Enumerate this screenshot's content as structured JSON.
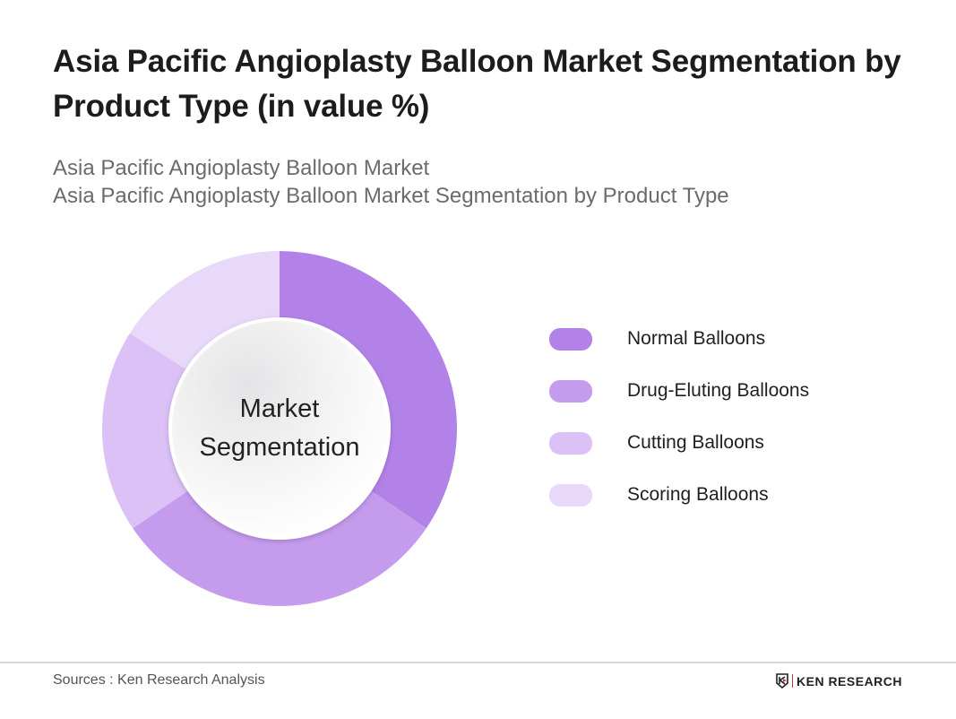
{
  "header": {
    "title": "Asia Pacific Angioplasty Balloon Market Segmentation by Product Type (in value %)",
    "subtitle_line1": "Asia Pacific Angioplasty Balloon Market",
    "subtitle_line2": "Asia Pacific Angioplasty Balloon Market Segmentation by Product Type"
  },
  "chart": {
    "center_line1": "Market",
    "center_line2": "Segmentation"
  },
  "legend": [
    {
      "label": "Normal Balloons",
      "color": "#b382e8"
    },
    {
      "label": "Drug-Eluting Balloons",
      "color": "#c59ced"
    },
    {
      "label": "Cutting Balloons",
      "color": "#dbc1f6"
    },
    {
      "label": "Scoring Balloons",
      "color": "#e8d8fa"
    }
  ],
  "footer": {
    "sources": "Sources : Ken Research Analysis",
    "logo_text": "KEN RESEARCH"
  },
  "chart_data": {
    "type": "pie",
    "subtype": "donut",
    "title": "Asia Pacific Angioplasty Balloon Market Segmentation by Product Type (in value %)",
    "center_text": "Market Segmentation",
    "categories": [
      "Normal Balloons",
      "Drug-Eluting Balloons",
      "Cutting Balloons",
      "Scoring Balloons"
    ],
    "values": [
      34.5,
      31,
      18.5,
      16
    ],
    "colors": [
      "#b382e8",
      "#c59ced",
      "#dbc1f6",
      "#e8d8fa"
    ],
    "legend_position": "right",
    "data_labels": false
  }
}
